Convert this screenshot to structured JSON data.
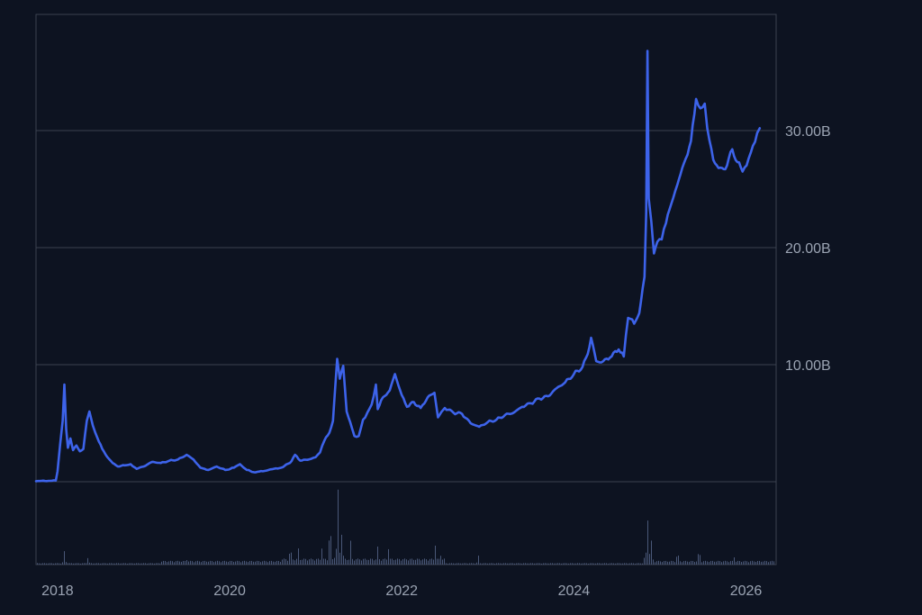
{
  "chart_data": {
    "type": "line",
    "title": "",
    "xlabel": "",
    "ylabel": "",
    "colors": {
      "background": "#0d1321",
      "line": "#3d63ea",
      "volume": "#4a5878",
      "grid": "#3a4150",
      "axis_text": "#9aa3b2",
      "frame": "#3a4150"
    },
    "grid": true,
    "y_axis_side": "right",
    "ylim": [
      0,
      40
    ],
    "xlim": [
      2017.75,
      2026.35
    ],
    "x_ticks": [
      {
        "value": 2018,
        "label": "2018"
      },
      {
        "value": 2020,
        "label": "2020"
      },
      {
        "value": 2022,
        "label": "2022"
      },
      {
        "value": 2024,
        "label": "2024"
      },
      {
        "value": 2026,
        "label": "2026"
      }
    ],
    "y_ticks": [
      {
        "value": 10,
        "label": "10.00B"
      },
      {
        "value": 20,
        "label": "20.00B"
      },
      {
        "value": 30,
        "label": "30.00B"
      }
    ],
    "series": [
      {
        "points": [
          [
            2017.75,
            0.05
          ],
          [
            2017.98,
            0.1
          ],
          [
            2018.0,
            0.9
          ],
          [
            2018.03,
            3.2
          ],
          [
            2018.06,
            5.2
          ],
          [
            2018.08,
            8.3
          ],
          [
            2018.1,
            4.5
          ],
          [
            2018.12,
            2.9
          ],
          [
            2018.15,
            3.7
          ],
          [
            2018.18,
            2.7
          ],
          [
            2018.22,
            3.1
          ],
          [
            2018.26,
            2.6
          ],
          [
            2018.3,
            2.8
          ],
          [
            2018.34,
            5.2
          ],
          [
            2018.37,
            6.0
          ],
          [
            2018.41,
            4.8
          ],
          [
            2018.46,
            3.8
          ],
          [
            2018.52,
            2.8
          ],
          [
            2018.58,
            2.1
          ],
          [
            2018.64,
            1.6
          ],
          [
            2018.7,
            1.3
          ],
          [
            2018.78,
            1.4
          ],
          [
            2018.85,
            1.5
          ],
          [
            2018.92,
            1.1
          ],
          [
            2019.0,
            1.3
          ],
          [
            2019.1,
            1.7
          ],
          [
            2019.2,
            1.6
          ],
          [
            2019.3,
            1.8
          ],
          [
            2019.4,
            1.9
          ],
          [
            2019.5,
            2.3
          ],
          [
            2019.58,
            1.9
          ],
          [
            2019.66,
            1.2
          ],
          [
            2019.75,
            1.0
          ],
          [
            2019.85,
            1.3
          ],
          [
            2019.95,
            1.0
          ],
          [
            2020.05,
            1.2
          ],
          [
            2020.12,
            1.5
          ],
          [
            2020.2,
            1.0
          ],
          [
            2020.3,
            0.8
          ],
          [
            2020.45,
            1.0
          ],
          [
            2020.6,
            1.2
          ],
          [
            2020.7,
            1.6
          ],
          [
            2020.76,
            2.3
          ],
          [
            2020.82,
            1.8
          ],
          [
            2020.92,
            1.9
          ],
          [
            2021.0,
            2.1
          ],
          [
            2021.05,
            2.5
          ],
          [
            2021.1,
            3.5
          ],
          [
            2021.16,
            4.2
          ],
          [
            2021.2,
            5.2
          ],
          [
            2021.25,
            10.5
          ],
          [
            2021.28,
            8.8
          ],
          [
            2021.32,
            9.9
          ],
          [
            2021.36,
            6.0
          ],
          [
            2021.4,
            5.1
          ],
          [
            2021.45,
            3.9
          ],
          [
            2021.5,
            3.9
          ],
          [
            2021.55,
            5.3
          ],
          [
            2021.6,
            5.9
          ],
          [
            2021.65,
            6.6
          ],
          [
            2021.7,
            8.3
          ],
          [
            2021.72,
            6.2
          ],
          [
            2021.78,
            7.2
          ],
          [
            2021.86,
            7.8
          ],
          [
            2021.92,
            9.2
          ],
          [
            2022.0,
            7.4
          ],
          [
            2022.06,
            6.4
          ],
          [
            2022.14,
            6.8
          ],
          [
            2022.22,
            6.3
          ],
          [
            2022.3,
            7.2
          ],
          [
            2022.38,
            7.6
          ],
          [
            2022.42,
            5.5
          ],
          [
            2022.5,
            6.3
          ],
          [
            2022.6,
            5.9
          ],
          [
            2022.7,
            5.8
          ],
          [
            2022.8,
            5.0
          ],
          [
            2022.9,
            4.7
          ],
          [
            2023.0,
            5.1
          ],
          [
            2023.1,
            5.3
          ],
          [
            2023.2,
            5.7
          ],
          [
            2023.3,
            5.9
          ],
          [
            2023.4,
            6.4
          ],
          [
            2023.5,
            6.7
          ],
          [
            2023.6,
            7.1
          ],
          [
            2023.7,
            7.3
          ],
          [
            2023.8,
            8.0
          ],
          [
            2023.9,
            8.5
          ],
          [
            2024.0,
            9.2
          ],
          [
            2024.1,
            9.8
          ],
          [
            2024.16,
            10.9
          ],
          [
            2024.2,
            12.3
          ],
          [
            2024.26,
            10.3
          ],
          [
            2024.32,
            10.2
          ],
          [
            2024.42,
            10.6
          ],
          [
            2024.52,
            11.3
          ],
          [
            2024.58,
            10.7
          ],
          [
            2024.63,
            14.0
          ],
          [
            2024.7,
            13.5
          ],
          [
            2024.76,
            14.4
          ],
          [
            2024.82,
            17.5
          ],
          [
            2024.84,
            23.0
          ],
          [
            2024.855,
            36.8
          ],
          [
            2024.87,
            24.2
          ],
          [
            2024.9,
            22.2
          ],
          [
            2024.93,
            19.5
          ],
          [
            2024.97,
            20.5
          ],
          [
            2025.02,
            20.7
          ],
          [
            2025.07,
            22.1
          ],
          [
            2025.13,
            23.7
          ],
          [
            2025.18,
            24.9
          ],
          [
            2025.24,
            26.3
          ],
          [
            2025.3,
            27.6
          ],
          [
            2025.36,
            29.1
          ],
          [
            2025.42,
            32.7
          ],
          [
            2025.47,
            31.9
          ],
          [
            2025.52,
            32.3
          ],
          [
            2025.55,
            30.2
          ],
          [
            2025.62,
            27.5
          ],
          [
            2025.68,
            26.8
          ],
          [
            2025.76,
            26.7
          ],
          [
            2025.84,
            28.4
          ],
          [
            2025.9,
            27.3
          ],
          [
            2025.96,
            26.5
          ],
          [
            2026.03,
            27.6
          ],
          [
            2026.08,
            28.7
          ],
          [
            2026.13,
            29.8
          ],
          [
            2026.16,
            30.2
          ]
        ]
      }
    ],
    "volume": {
      "base_level": 0.02,
      "spikes": [
        [
          2018.08,
          0.18
        ],
        [
          2018.35,
          0.12
        ],
        [
          2019.5,
          0.08
        ],
        [
          2020.7,
          0.16
        ],
        [
          2020.8,
          0.22
        ],
        [
          2021.06,
          0.28
        ],
        [
          2021.16,
          0.38
        ],
        [
          2021.25,
          1.0
        ],
        [
          2021.3,
          0.55
        ],
        [
          2021.4,
          0.32
        ],
        [
          2021.72,
          0.24
        ],
        [
          2021.84,
          0.28
        ],
        [
          2022.38,
          0.34
        ],
        [
          2022.44,
          0.16
        ],
        [
          2022.88,
          0.12
        ],
        [
          2024.855,
          0.8
        ],
        [
          2024.9,
          0.32
        ],
        [
          2025.2,
          0.12
        ],
        [
          2025.45,
          0.14
        ],
        [
          2025.85,
          0.12
        ]
      ]
    }
  }
}
